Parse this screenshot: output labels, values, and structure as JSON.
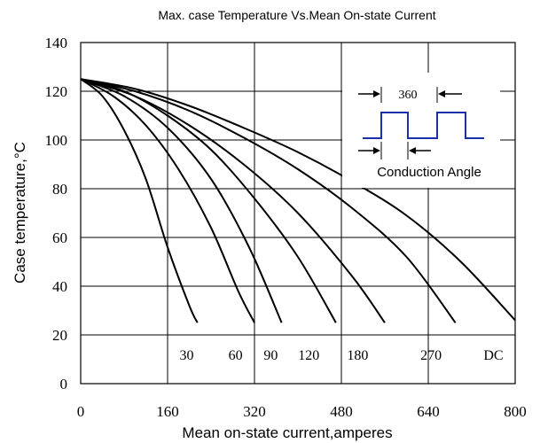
{
  "chart_data": {
    "type": "line",
    "title": "Max. case Temperature Vs.Mean On-state Current",
    "xlabel": "Mean on-state current,amperes",
    "ylabel": "Case temperature,°C",
    "xlim": [
      0,
      800
    ],
    "ylim": [
      0,
      140
    ],
    "x_ticks": [
      "0",
      "160",
      "320",
      "480",
      "640",
      "800"
    ],
    "y_ticks": [
      "0",
      "20",
      "40",
      "60",
      "80",
      "100",
      "120",
      "140"
    ],
    "grid": true,
    "series": [
      {
        "name": "30",
        "label_x": 195,
        "label_y": 12,
        "x": [
          0,
          40,
          80,
          120,
          160,
          200,
          215
        ],
        "y": [
          125,
          118,
          104,
          84,
          56,
          32,
          25
        ]
      },
      {
        "name": "60",
        "label_x": 285,
        "label_y": 12,
        "x": [
          0,
          60,
          120,
          180,
          240,
          290,
          320
        ],
        "y": [
          125,
          118,
          106,
          88,
          64,
          38,
          25
        ]
      },
      {
        "name": "90",
        "label_x": 350,
        "label_y": 12,
        "x": [
          0,
          80,
          160,
          240,
          310,
          370
        ],
        "y": [
          125,
          118,
          105,
          84,
          56,
          25
        ]
      },
      {
        "name": "120",
        "label_x": 420,
        "label_y": 12,
        "x": [
          0,
          80,
          160,
          240,
          320,
          400,
          470
        ],
        "y": [
          125,
          120,
          110,
          96,
          76,
          52,
          25
        ]
      },
      {
        "name": "180",
        "label_x": 510,
        "label_y": 12,
        "x": [
          0,
          100,
          200,
          300,
          400,
          500,
          560
        ],
        "y": [
          125,
          118,
          106,
          90,
          70,
          44,
          25
        ]
      },
      {
        "name": "270",
        "label_x": 645,
        "label_y": 12,
        "x": [
          0,
          100,
          200,
          300,
          400,
          500,
          600,
          690
        ],
        "y": [
          125,
          120,
          112,
          101,
          88,
          72,
          52,
          25
        ]
      },
      {
        "name": "DC",
        "label_x": 760,
        "label_y": 12,
        "x": [
          0,
          100,
          200,
          300,
          400,
          500,
          600,
          700,
          800
        ],
        "y": [
          125,
          121,
          114,
          105,
          95,
          83,
          69,
          50,
          26
        ]
      }
    ],
    "inset": {
      "period_label": "360",
      "angle_label": "Conduction Angle",
      "waveform_color": "#1a2fa8"
    }
  }
}
